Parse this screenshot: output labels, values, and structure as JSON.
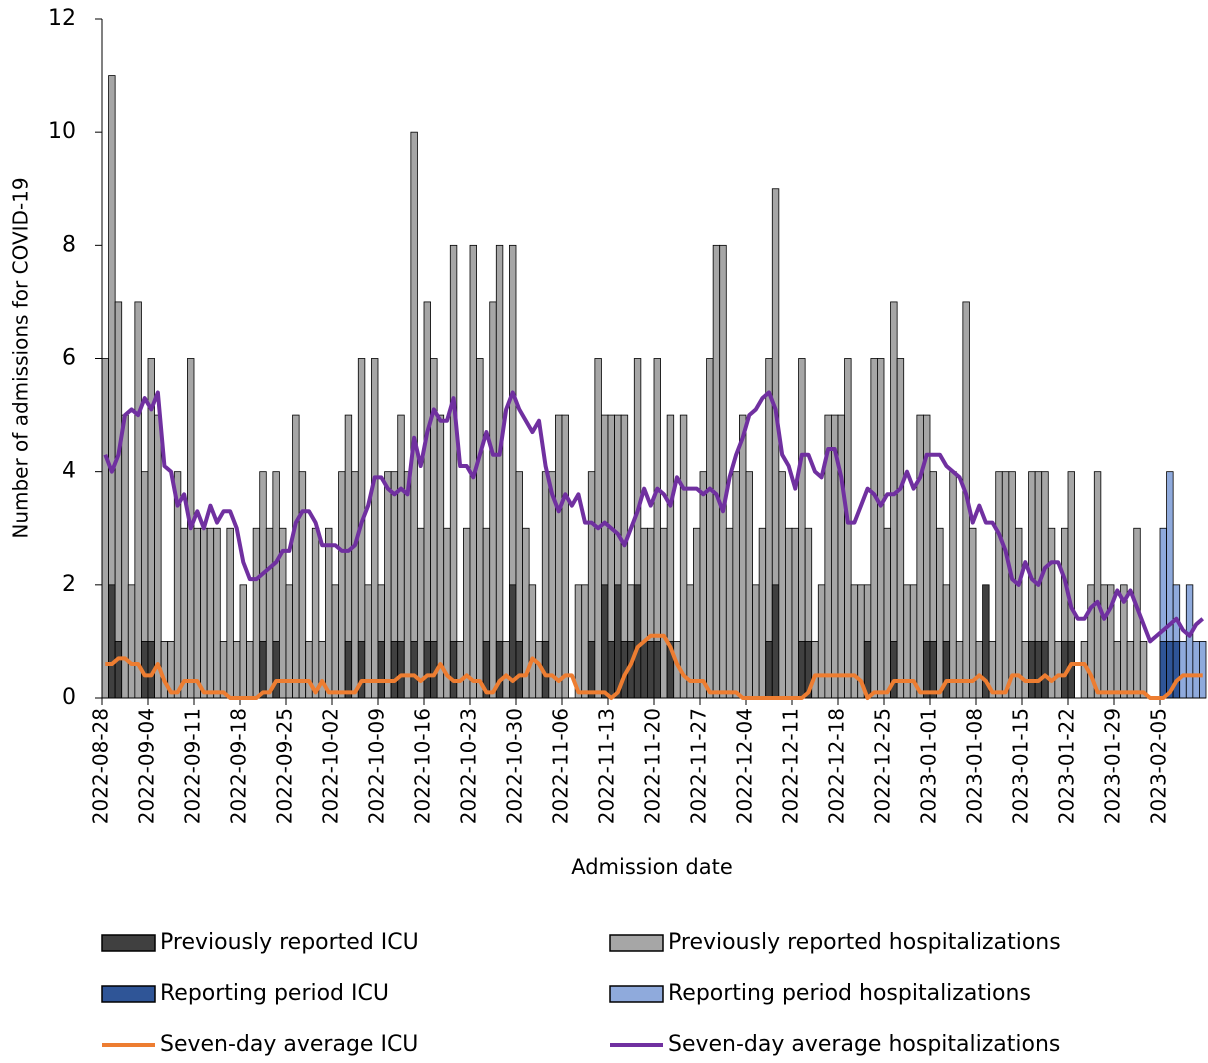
{
  "chart_data": {
    "type": "bar",
    "y_label": "Number of admissions for COVID-19",
    "x_label": "Admission date",
    "ylim": [
      0,
      12
    ],
    "yticks": [
      0,
      2,
      4,
      6,
      8,
      10,
      12
    ],
    "grid": false,
    "categories": [
      "2022-08-28",
      null,
      null,
      null,
      null,
      null,
      null,
      "2022-09-04",
      null,
      null,
      null,
      null,
      null,
      null,
      "2022-09-11",
      null,
      null,
      null,
      null,
      null,
      null,
      "2022-09-18",
      null,
      null,
      null,
      null,
      null,
      null,
      "2022-09-25",
      null,
      null,
      null,
      null,
      null,
      null,
      "2022-10-02",
      null,
      null,
      null,
      null,
      null,
      null,
      "2022-10-09",
      null,
      null,
      null,
      null,
      null,
      null,
      "2022-10-16",
      null,
      null,
      null,
      null,
      null,
      null,
      "2022-10-23",
      null,
      null,
      null,
      null,
      null,
      null,
      "2022-10-30",
      null,
      null,
      null,
      null,
      null,
      null,
      "2022-11-06",
      null,
      null,
      null,
      null,
      null,
      null,
      "2022-11-13",
      null,
      null,
      null,
      null,
      null,
      null,
      "2022-11-20",
      null,
      null,
      null,
      null,
      null,
      null,
      "2022-11-27",
      null,
      null,
      null,
      null,
      null,
      null,
      "2022-12-04",
      null,
      null,
      null,
      null,
      null,
      null,
      "2022-12-11",
      null,
      null,
      null,
      null,
      null,
      null,
      "2022-12-18",
      null,
      null,
      null,
      null,
      null,
      null,
      "2022-12-25",
      null,
      null,
      null,
      null,
      null,
      null,
      "2023-01-01",
      null,
      null,
      null,
      null,
      null,
      null,
      "2023-01-08",
      null,
      null,
      null,
      null,
      null,
      null,
      "2023-01-15",
      null,
      null,
      null,
      null,
      null,
      null,
      "2023-01-22",
      null,
      null,
      null,
      null,
      null,
      null,
      "2023-01-29",
      null,
      null,
      null,
      null,
      null,
      null,
      "2023-02-05",
      null,
      null,
      null,
      null,
      null,
      null
    ],
    "series": [
      {
        "name": "Previously reported ICU",
        "type": "bar",
        "color": "#404040",
        "values": [
          0,
          2,
          1,
          0,
          0,
          0,
          1,
          1,
          0,
          1,
          1,
          0,
          0,
          0,
          0,
          0,
          0,
          0,
          0,
          0,
          0,
          0,
          0,
          0,
          1,
          0,
          1,
          0,
          0,
          0,
          0,
          1,
          0,
          0,
          0,
          0,
          0,
          1,
          0,
          1,
          0,
          0,
          1,
          0,
          1,
          1,
          0,
          1,
          0,
          1,
          1,
          0,
          0,
          1,
          1,
          0,
          0,
          0,
          1,
          0,
          1,
          0,
          2,
          1,
          0,
          0,
          0,
          1,
          0,
          0,
          0,
          0,
          0,
          0,
          1,
          0,
          2,
          1,
          2,
          1,
          1,
          2,
          1,
          1,
          1,
          0,
          1,
          0,
          0,
          0,
          0,
          0,
          0,
          0,
          0,
          0,
          0,
          0,
          0,
          0,
          0,
          1,
          2,
          0,
          0,
          0,
          1,
          1,
          1,
          0,
          0,
          0,
          0,
          0,
          0,
          0,
          1,
          0,
          0,
          0,
          1,
          0,
          0,
          0,
          0,
          1,
          1,
          0,
          1,
          0,
          0,
          0,
          0,
          0,
          2,
          0,
          0,
          0,
          0,
          0,
          0,
          1,
          1,
          1,
          0,
          0,
          1,
          1,
          0,
          0,
          0,
          0,
          0,
          0,
          0,
          0,
          0,
          0,
          0,
          0,
          0,
          null,
          null,
          null,
          null,
          null,
          null,
          null
        ]
      },
      {
        "name": "Previously reported hospitalizations",
        "type": "bar",
        "color": "#a6a6a6",
        "values": [
          6,
          11,
          7,
          5,
          2,
          7,
          4,
          6,
          5,
          1,
          1,
          4,
          3,
          6,
          3,
          3,
          3,
          3,
          1,
          3,
          1,
          2,
          1,
          3,
          4,
          3,
          4,
          3,
          2,
          5,
          4,
          1,
          3,
          1,
          3,
          2,
          4,
          5,
          4,
          6,
          2,
          6,
          2,
          4,
          4,
          5,
          4,
          10,
          3,
          7,
          6,
          5,
          3,
          8,
          1,
          3,
          8,
          6,
          3,
          7,
          8,
          1,
          8,
          4,
          3,
          2,
          1,
          4,
          4,
          5,
          5,
          0,
          2,
          2,
          4,
          6,
          5,
          5,
          5,
          5,
          2,
          6,
          3,
          3,
          6,
          3,
          5,
          1,
          5,
          2,
          3,
          4,
          6,
          8,
          8,
          3,
          4,
          5,
          4,
          2,
          3,
          6,
          9,
          4,
          3,
          3,
          6,
          3,
          1,
          2,
          5,
          5,
          5,
          6,
          2,
          2,
          2,
          6,
          6,
          3,
          7,
          6,
          2,
          2,
          5,
          5,
          4,
          3,
          2,
          4,
          1,
          7,
          3,
          1,
          0,
          1,
          4,
          4,
          4,
          3,
          1,
          4,
          4,
          4,
          3,
          1,
          3,
          4,
          0,
          1,
          2,
          4,
          2,
          2,
          1,
          2,
          1,
          3,
          1,
          0,
          0,
          null,
          null,
          null,
          null,
          null,
          null,
          null
        ]
      },
      {
        "name": "Reporting period ICU",
        "type": "bar",
        "color": "#2f5597",
        "values": [
          null,
          null,
          null,
          null,
          null,
          null,
          null,
          null,
          null,
          null,
          null,
          null,
          null,
          null,
          null,
          null,
          null,
          null,
          null,
          null,
          null,
          null,
          null,
          null,
          null,
          null,
          null,
          null,
          null,
          null,
          null,
          null,
          null,
          null,
          null,
          null,
          null,
          null,
          null,
          null,
          null,
          null,
          null,
          null,
          null,
          null,
          null,
          null,
          null,
          null,
          null,
          null,
          null,
          null,
          null,
          null,
          null,
          null,
          null,
          null,
          null,
          null,
          null,
          null,
          null,
          null,
          null,
          null,
          null,
          null,
          null,
          null,
          null,
          null,
          null,
          null,
          null,
          null,
          null,
          null,
          null,
          null,
          null,
          null,
          null,
          null,
          null,
          null,
          null,
          null,
          null,
          null,
          null,
          null,
          null,
          null,
          null,
          null,
          null,
          null,
          null,
          null,
          null,
          null,
          null,
          null,
          null,
          null,
          null,
          null,
          null,
          null,
          null,
          null,
          null,
          null,
          null,
          null,
          null,
          null,
          null,
          null,
          null,
          null,
          null,
          null,
          null,
          null,
          null,
          null,
          null,
          null,
          null,
          null,
          null,
          null,
          null,
          null,
          null,
          null,
          null,
          null,
          null,
          null,
          null,
          null,
          null,
          null,
          null,
          null,
          null,
          null,
          null,
          null,
          null,
          null,
          null,
          null,
          null,
          null,
          null,
          1,
          1,
          1,
          1,
          0,
          0,
          0
        ]
      },
      {
        "name": "Reporting period hospitalizations",
        "type": "bar",
        "color": "#8faadc",
        "values": [
          null,
          null,
          null,
          null,
          null,
          null,
          null,
          null,
          null,
          null,
          null,
          null,
          null,
          null,
          null,
          null,
          null,
          null,
          null,
          null,
          null,
          null,
          null,
          null,
          null,
          null,
          null,
          null,
          null,
          null,
          null,
          null,
          null,
          null,
          null,
          null,
          null,
          null,
          null,
          null,
          null,
          null,
          null,
          null,
          null,
          null,
          null,
          null,
          null,
          null,
          null,
          null,
          null,
          null,
          null,
          null,
          null,
          null,
          null,
          null,
          null,
          null,
          null,
          null,
          null,
          null,
          null,
          null,
          null,
          null,
          null,
          null,
          null,
          null,
          null,
          null,
          null,
          null,
          null,
          null,
          null,
          null,
          null,
          null,
          null,
          null,
          null,
          null,
          null,
          null,
          null,
          null,
          null,
          null,
          null,
          null,
          null,
          null,
          null,
          null,
          null,
          null,
          null,
          null,
          null,
          null,
          null,
          null,
          null,
          null,
          null,
          null,
          null,
          null,
          null,
          null,
          null,
          null,
          null,
          null,
          null,
          null,
          null,
          null,
          null,
          null,
          null,
          null,
          null,
          null,
          null,
          null,
          null,
          null,
          null,
          null,
          null,
          null,
          null,
          null,
          null,
          null,
          null,
          null,
          null,
          null,
          null,
          null,
          null,
          null,
          null,
          null,
          null,
          null,
          null,
          null,
          null,
          null,
          null,
          null,
          null,
          3,
          4,
          2,
          1,
          2,
          1,
          1
        ]
      },
      {
        "name": "Seven-day average ICU",
        "type": "line",
        "color": "#ed7d31",
        "values": [
          0.6,
          0.6,
          0.7,
          0.7,
          0.6,
          0.6,
          0.4,
          0.4,
          0.6,
          0.3,
          0.1,
          0.1,
          0.3,
          0.3,
          0.3,
          0.1,
          0.1,
          0.1,
          0.1,
          0.0,
          0.0,
          0.0,
          0.0,
          0.0,
          0.1,
          0.1,
          0.3,
          0.3,
          0.3,
          0.3,
          0.3,
          0.3,
          0.1,
          0.3,
          0.1,
          0.1,
          0.1,
          0.1,
          0.1,
          0.3,
          0.3,
          0.3,
          0.3,
          0.3,
          0.3,
          0.4,
          0.4,
          0.4,
          0.3,
          0.4,
          0.4,
          0.6,
          0.4,
          0.3,
          0.3,
          0.4,
          0.3,
          0.3,
          0.1,
          0.1,
          0.3,
          0.4,
          0.3,
          0.4,
          0.4,
          0.7,
          0.6,
          0.4,
          0.4,
          0.3,
          0.4,
          0.4,
          0.1,
          0.1,
          0.1,
          0.1,
          0.1,
          0.0,
          0.1,
          0.4,
          0.6,
          0.9,
          1.0,
          1.1,
          1.1,
          1.1,
          0.9,
          0.6,
          0.4,
          0.3,
          0.3,
          0.3,
          0.1,
          0.1,
          0.1,
          0.1,
          0.1,
          0.0,
          0.0,
          0.0,
          0.0,
          0.0,
          0.0,
          0.0,
          0.0,
          0.0,
          0.0,
          0.1,
          0.4,
          0.4,
          0.4,
          0.4,
          0.4,
          0.4,
          0.4,
          0.3,
          0.0,
          0.1,
          0.1,
          0.1,
          0.3,
          0.3,
          0.3,
          0.3,
          0.1,
          0.1,
          0.1,
          0.1,
          0.3,
          0.3,
          0.3,
          0.3,
          0.3,
          0.4,
          0.3,
          0.1,
          0.1,
          0.1,
          0.4,
          0.4,
          0.3,
          0.3,
          0.3,
          0.4,
          0.3,
          0.4,
          0.4,
          0.6,
          0.6,
          0.6,
          0.4,
          0.1,
          0.1,
          0.1,
          0.1,
          0.1,
          0.1,
          0.1,
          0.1,
          0.0,
          0.0,
          0.0,
          0.1,
          0.3,
          0.4,
          0.4,
          0.4,
          0.4
        ]
      },
      {
        "name": "Seven-day average hospitalizations",
        "type": "line",
        "color": "#7030a0",
        "values": [
          4.3,
          4.0,
          4.3,
          5.0,
          5.1,
          5.0,
          5.3,
          5.1,
          5.4,
          4.1,
          4.0,
          3.4,
          3.6,
          3.0,
          3.3,
          3.0,
          3.4,
          3.1,
          3.3,
          3.3,
          3.0,
          2.4,
          2.1,
          2.1,
          2.2,
          2.3,
          2.4,
          2.6,
          2.6,
          3.1,
          3.3,
          3.3,
          3.1,
          2.7,
          2.7,
          2.7,
          2.6,
          2.6,
          2.7,
          3.1,
          3.4,
          3.9,
          3.9,
          3.7,
          3.6,
          3.7,
          3.6,
          4.6,
          4.1,
          4.7,
          5.1,
          4.9,
          4.9,
          5.3,
          4.1,
          4.1,
          3.9,
          4.3,
          4.7,
          4.3,
          4.3,
          5.1,
          5.4,
          5.1,
          4.9,
          4.7,
          4.9,
          4.1,
          3.6,
          3.3,
          3.6,
          3.4,
          3.6,
          3.1,
          3.1,
          3.0,
          3.1,
          3.0,
          2.9,
          2.7,
          3.0,
          3.3,
          3.7,
          3.4,
          3.7,
          3.6,
          3.4,
          3.9,
          3.7,
          3.7,
          3.7,
          3.6,
          3.7,
          3.6,
          3.3,
          3.9,
          4.3,
          4.6,
          5.0,
          5.1,
          5.3,
          5.4,
          5.1,
          4.3,
          4.1,
          3.7,
          4.3,
          4.3,
          4.0,
          3.9,
          4.4,
          4.4,
          3.9,
          3.1,
          3.1,
          3.4,
          3.7,
          3.6,
          3.4,
          3.6,
          3.6,
          3.7,
          4.0,
          3.7,
          3.9,
          4.3,
          4.3,
          4.3,
          4.1,
          4.0,
          3.9,
          3.6,
          3.1,
          3.4,
          3.1,
          3.1,
          2.9,
          2.6,
          2.1,
          2.0,
          2.4,
          2.1,
          2.0,
          2.3,
          2.4,
          2.4,
          2.1,
          1.6,
          1.4,
          1.4,
          1.6,
          1.7,
          1.4,
          1.6,
          1.9,
          1.7,
          1.9,
          1.6,
          1.3,
          1.0,
          1.1,
          1.2,
          1.3,
          1.4,
          1.2,
          1.1,
          1.3,
          1.4
        ]
      }
    ]
  }
}
